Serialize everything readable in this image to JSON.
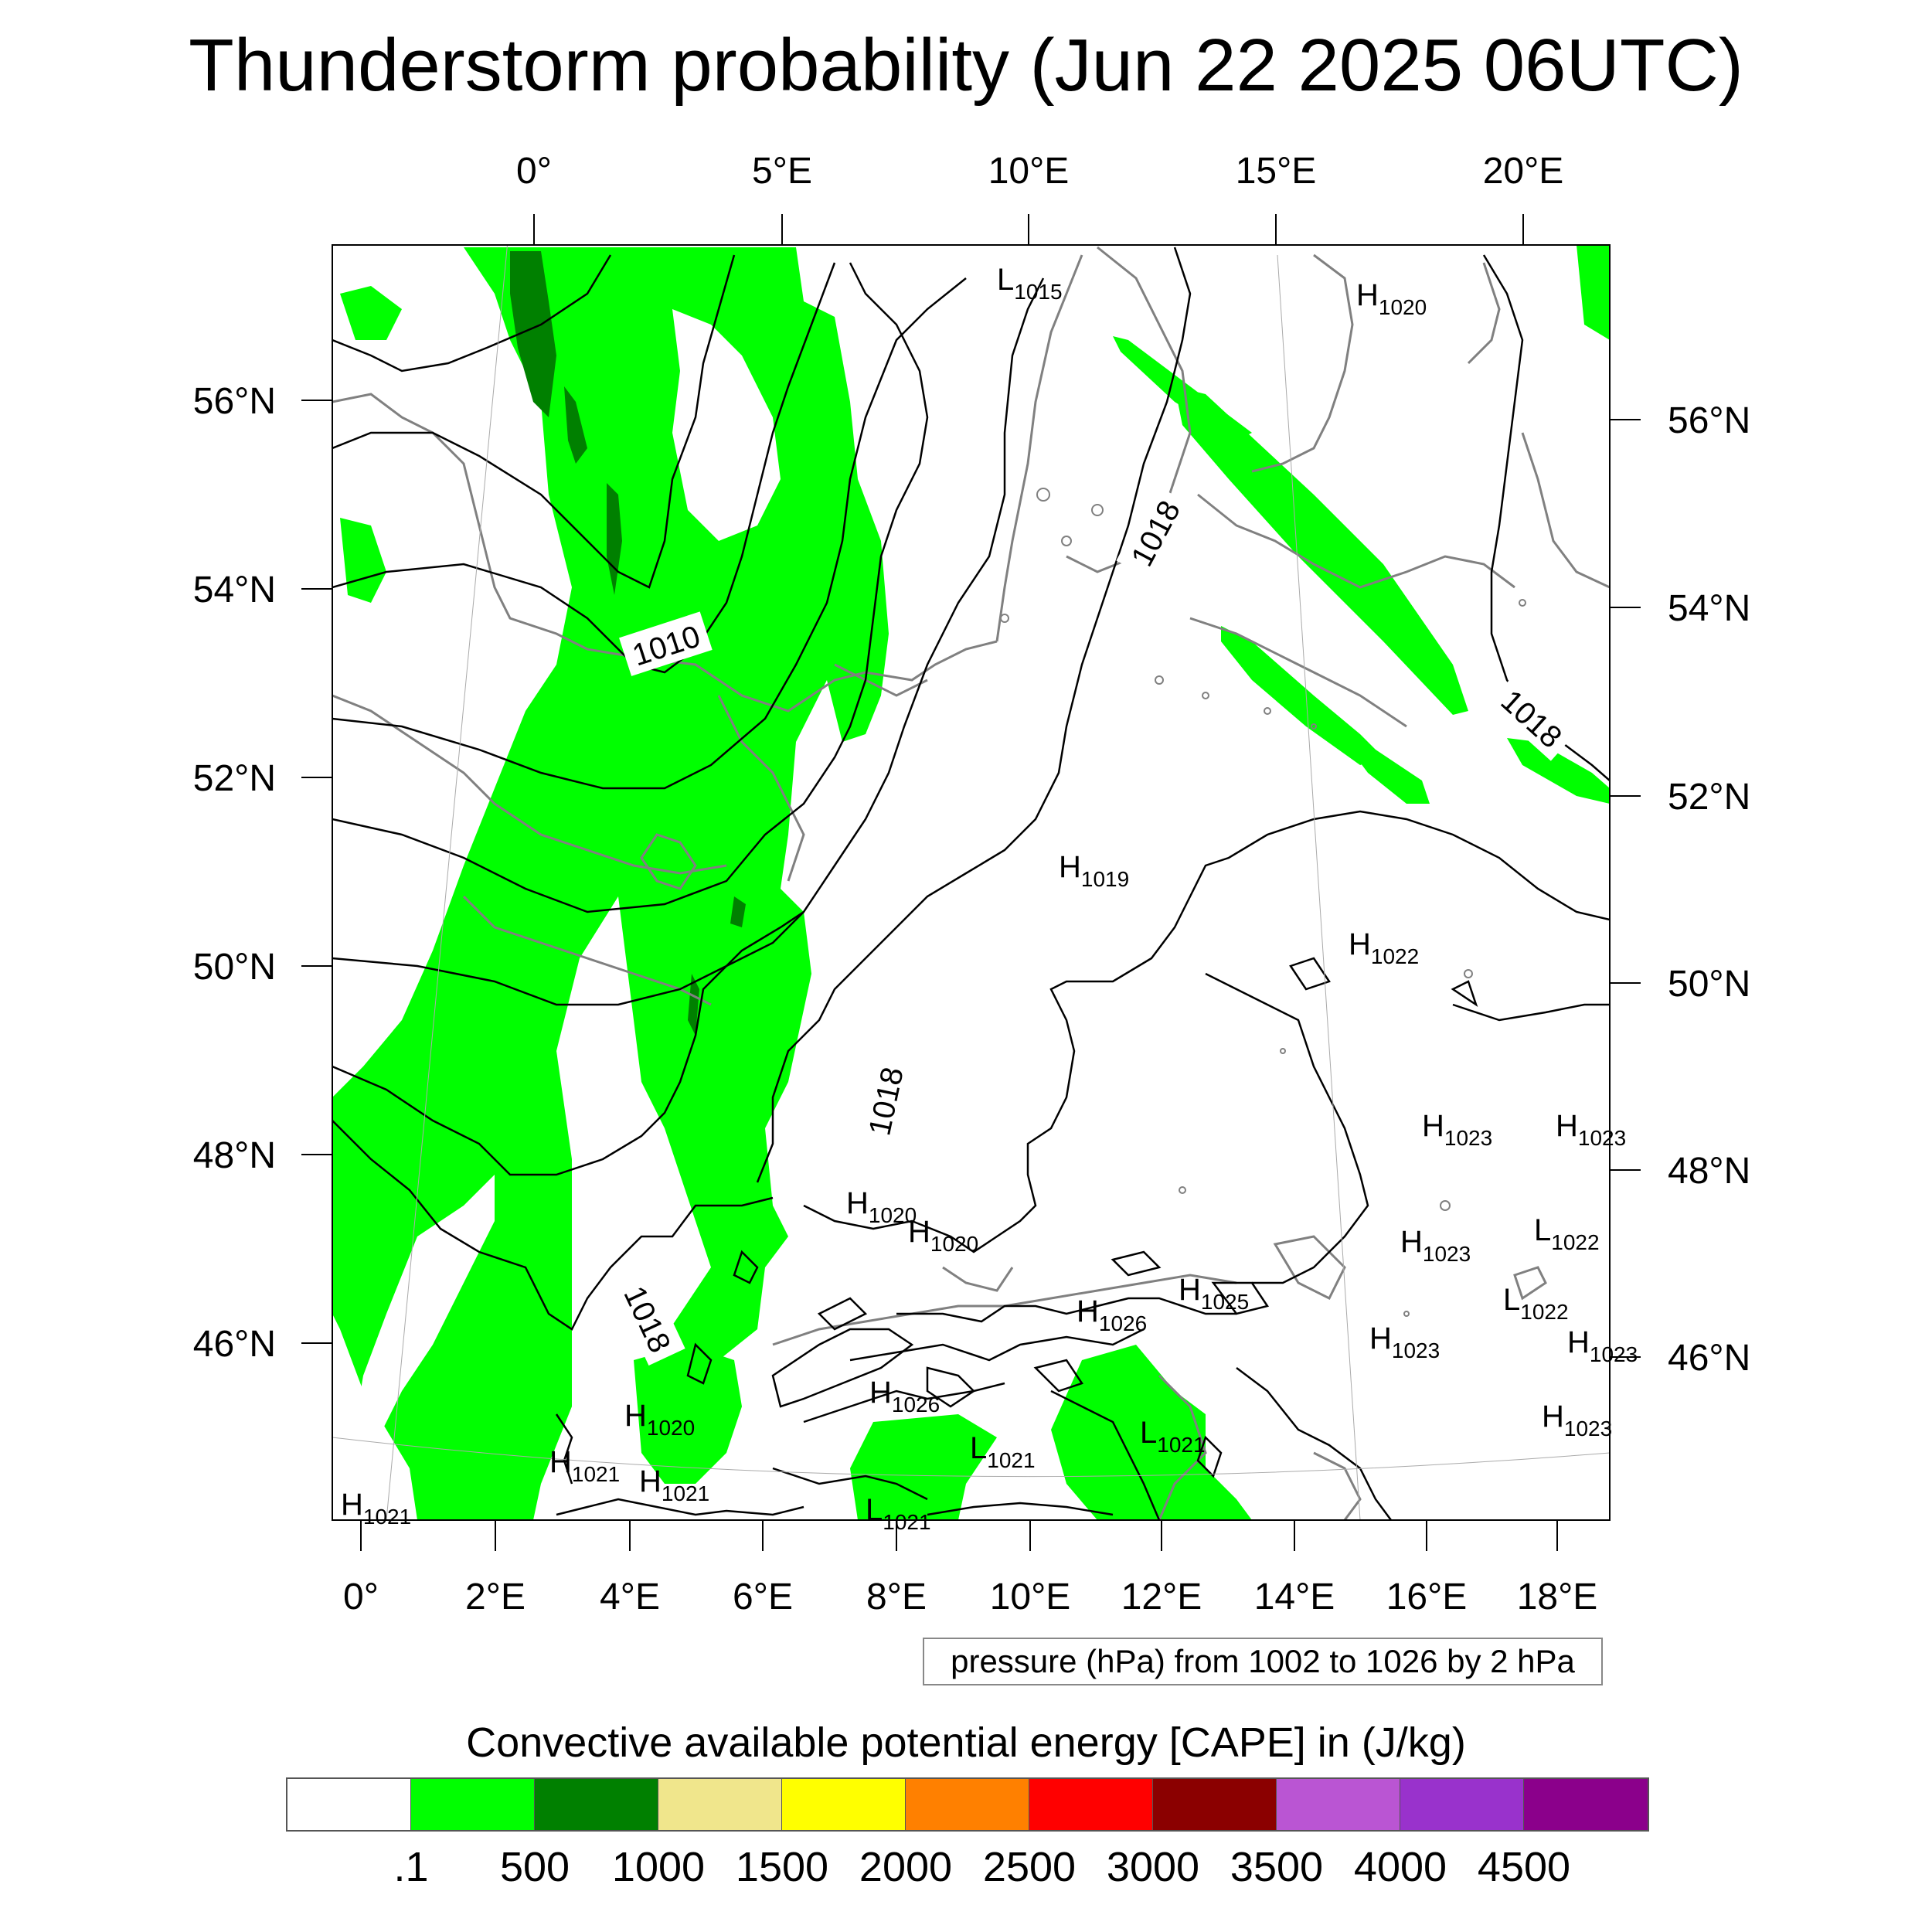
{
  "title": "Thunderstorm probability (Jun 22 2025 06UTC)",
  "top_lon_labels": [
    "0°",
    "5°E",
    "10°E",
    "15°E",
    "20°E"
  ],
  "bottom_lon_labels": [
    "0°",
    "2°E",
    "4°E",
    "6°E",
    "8°E",
    "10°E",
    "12°E",
    "14°E",
    "16°E",
    "18°E"
  ],
  "left_lat_labels": [
    "56°N",
    "54°N",
    "52°N",
    "50°N",
    "48°N",
    "46°N"
  ],
  "right_lat_labels": [
    "56°N",
    "54°N",
    "52°N",
    "50°N",
    "48°N",
    "46°N"
  ],
  "isobar_labels": [
    "1010",
    "1018",
    "1018",
    "1018",
    "1018"
  ],
  "pressure_centers": [
    {
      "type": "L",
      "value": "1015"
    },
    {
      "type": "H",
      "value": "1020"
    },
    {
      "type": "H",
      "value": "1019"
    },
    {
      "type": "H",
      "value": "1022"
    },
    {
      "type": "H",
      "value": "1023"
    },
    {
      "type": "H",
      "value": "1023"
    },
    {
      "type": "L",
      "value": "1022"
    },
    {
      "type": "H",
      "value": "1023"
    },
    {
      "type": "L",
      "value": "1022"
    },
    {
      "type": "H",
      "value": "1023"
    },
    {
      "type": "H",
      "value": "1023"
    },
    {
      "type": "H",
      "value": "1023"
    },
    {
      "type": "H",
      "value": "1020"
    },
    {
      "type": "H",
      "value": "1020"
    },
    {
      "type": "H",
      "value": "1025"
    },
    {
      "type": "H",
      "value": "1026"
    },
    {
      "type": "H",
      "value": "1026"
    },
    {
      "type": "L",
      "value": "1021"
    },
    {
      "type": "L",
      "value": "1021"
    },
    {
      "type": "H",
      "value": "1020"
    },
    {
      "type": "H",
      "value": "1021"
    },
    {
      "type": "H",
      "value": "1021"
    },
    {
      "type": "H",
      "value": "1021"
    },
    {
      "type": "L",
      "value": "1021"
    }
  ],
  "pressure_note": "pressure (hPa) from 1002 to 1026 by 2 hPa",
  "colorbar": {
    "title": "Convective available potential energy [CAPE] in (J/kg)",
    "colors": [
      "#ffffff",
      "#00ff00",
      "#008000",
      "#f0e68c",
      "#ffff00",
      "#ff8000",
      "#ff0000",
      "#8b0000",
      "#ba55d3",
      "#9932cc",
      "#8b008b"
    ],
    "labels": [
      ".1",
      "500",
      "1000",
      "1500",
      "2000",
      "2500",
      "3000",
      "3500",
      "4000",
      "4500"
    ]
  }
}
